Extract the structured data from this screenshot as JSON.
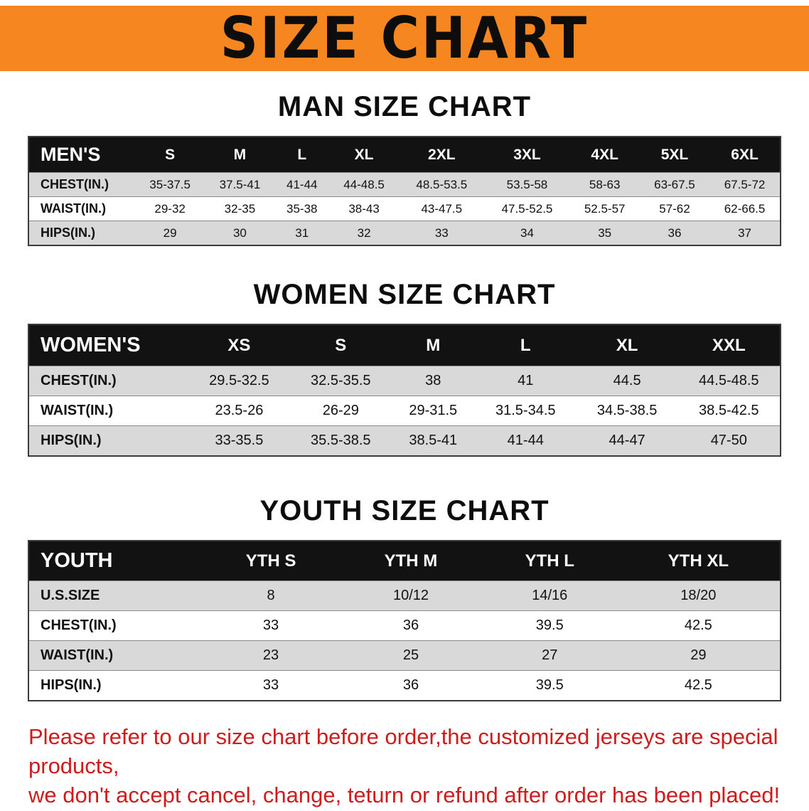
{
  "banner": {
    "title": "SIZE CHART"
  },
  "colors": {
    "banner_bg": "#f6861f",
    "table_header_bg": "#121212",
    "row_shade": "#d9d9d9",
    "footer_text": "#ce1c1c"
  },
  "sections": {
    "men": {
      "heading": "MAN SIZE CHART",
      "label": "MEN'S",
      "columns": [
        "S",
        "M",
        "L",
        "XL",
        "2XL",
        "3XL",
        "4XL",
        "5XL",
        "6XL"
      ],
      "rows": [
        {
          "label": "CHEST(IN.)",
          "values": [
            "35-37.5",
            "37.5-41",
            "41-44",
            "44-48.5",
            "48.5-53.5",
            "53.5-58",
            "58-63",
            "63-67.5",
            "67.5-72"
          ]
        },
        {
          "label": "WAIST(IN.)",
          "values": [
            "29-32",
            "32-35",
            "35-38",
            "38-43",
            "43-47.5",
            "47.5-52.5",
            "52.5-57",
            "57-62",
            "62-66.5"
          ]
        },
        {
          "label": "HIPS(IN.)",
          "values": [
            "29",
            "30",
            "31",
            "32",
            "33",
            "34",
            "35",
            "36",
            "37"
          ]
        }
      ]
    },
    "women": {
      "heading": "WOMEN SIZE CHART",
      "label": "WOMEN'S",
      "columns": [
        "XS",
        "S",
        "M",
        "L",
        "XL",
        "XXL"
      ],
      "rows": [
        {
          "label": "CHEST(IN.)",
          "values": [
            "29.5-32.5",
            "32.5-35.5",
            "38",
            "41",
            "44.5",
            "44.5-48.5"
          ]
        },
        {
          "label": "WAIST(IN.)",
          "values": [
            "23.5-26",
            "26-29",
            "29-31.5",
            "31.5-34.5",
            "34.5-38.5",
            "38.5-42.5"
          ]
        },
        {
          "label": "HIPS(IN.)",
          "values": [
            "33-35.5",
            "35.5-38.5",
            "38.5-41",
            "41-44",
            "44-47",
            "47-50"
          ]
        }
      ]
    },
    "youth": {
      "heading": "YOUTH SIZE CHART",
      "label": "YOUTH",
      "columns": [
        "YTH S",
        "YTH M",
        "YTH L",
        "YTH XL"
      ],
      "rows": [
        {
          "label": "U.S.SIZE",
          "values": [
            "8",
            "10/12",
            "14/16",
            "18/20"
          ]
        },
        {
          "label": "CHEST(IN.)",
          "values": [
            "33",
            "36",
            "39.5",
            "42.5"
          ]
        },
        {
          "label": "WAIST(IN.)",
          "values": [
            "23",
            "25",
            "27",
            "29"
          ]
        },
        {
          "label": "HIPS(IN.)",
          "values": [
            "33",
            "36",
            "39.5",
            "42.5"
          ]
        }
      ]
    }
  },
  "footer": {
    "line1": "Please refer to our size chart before order,the customized jerseys are special products,",
    "line2": "we don't accept cancel, change, teturn or refund after order has been placed!"
  }
}
